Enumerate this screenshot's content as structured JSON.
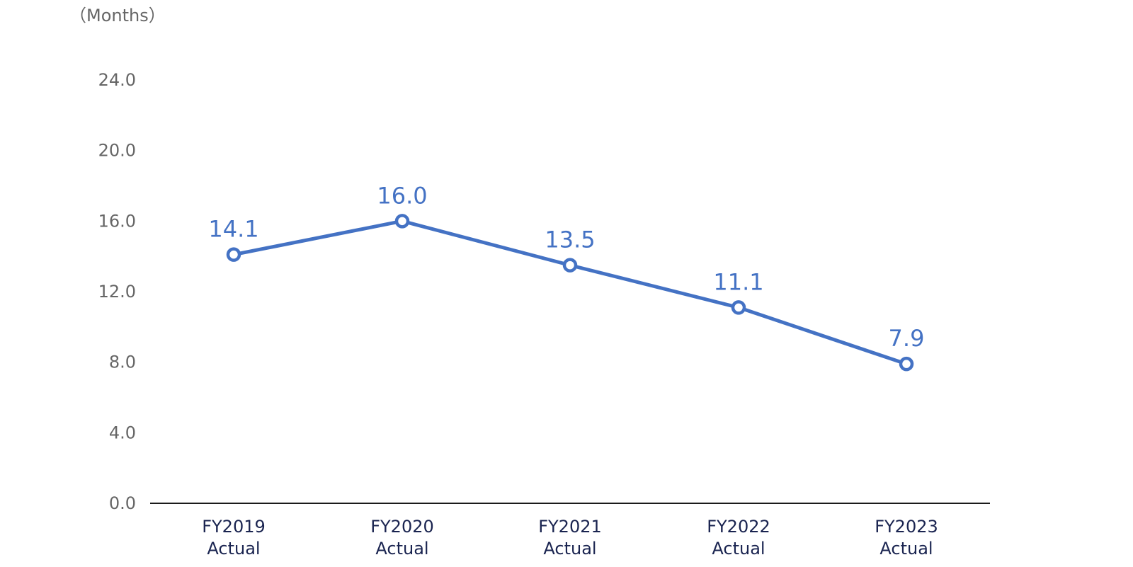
{
  "chart_data": {
    "type": "line",
    "unit_label": "（Months）",
    "categories": [
      [
        "FY2019",
        "Actual"
      ],
      [
        "FY2020",
        "Actual"
      ],
      [
        "FY2021",
        "Actual"
      ],
      [
        "FY2022",
        "Actual"
      ],
      [
        "FY2023",
        "Actual"
      ]
    ],
    "series": [
      {
        "values": [
          14.1,
          16.0,
          13.5,
          11.1,
          7.9
        ],
        "color": "#4472c4"
      }
    ],
    "data_labels": [
      "14.1",
      "16.0",
      "13.5",
      "11.1",
      "7.9"
    ],
    "y_ticks": [
      "0.0",
      "4.0",
      "8.0",
      "12.0",
      "16.0",
      "20.0",
      "24.0"
    ],
    "ylim": [
      0,
      24
    ],
    "grid": false,
    "axis_color": "#1a1a1a",
    "text_color_ticks": "#666666",
    "text_color_categories": "#1a2450"
  }
}
